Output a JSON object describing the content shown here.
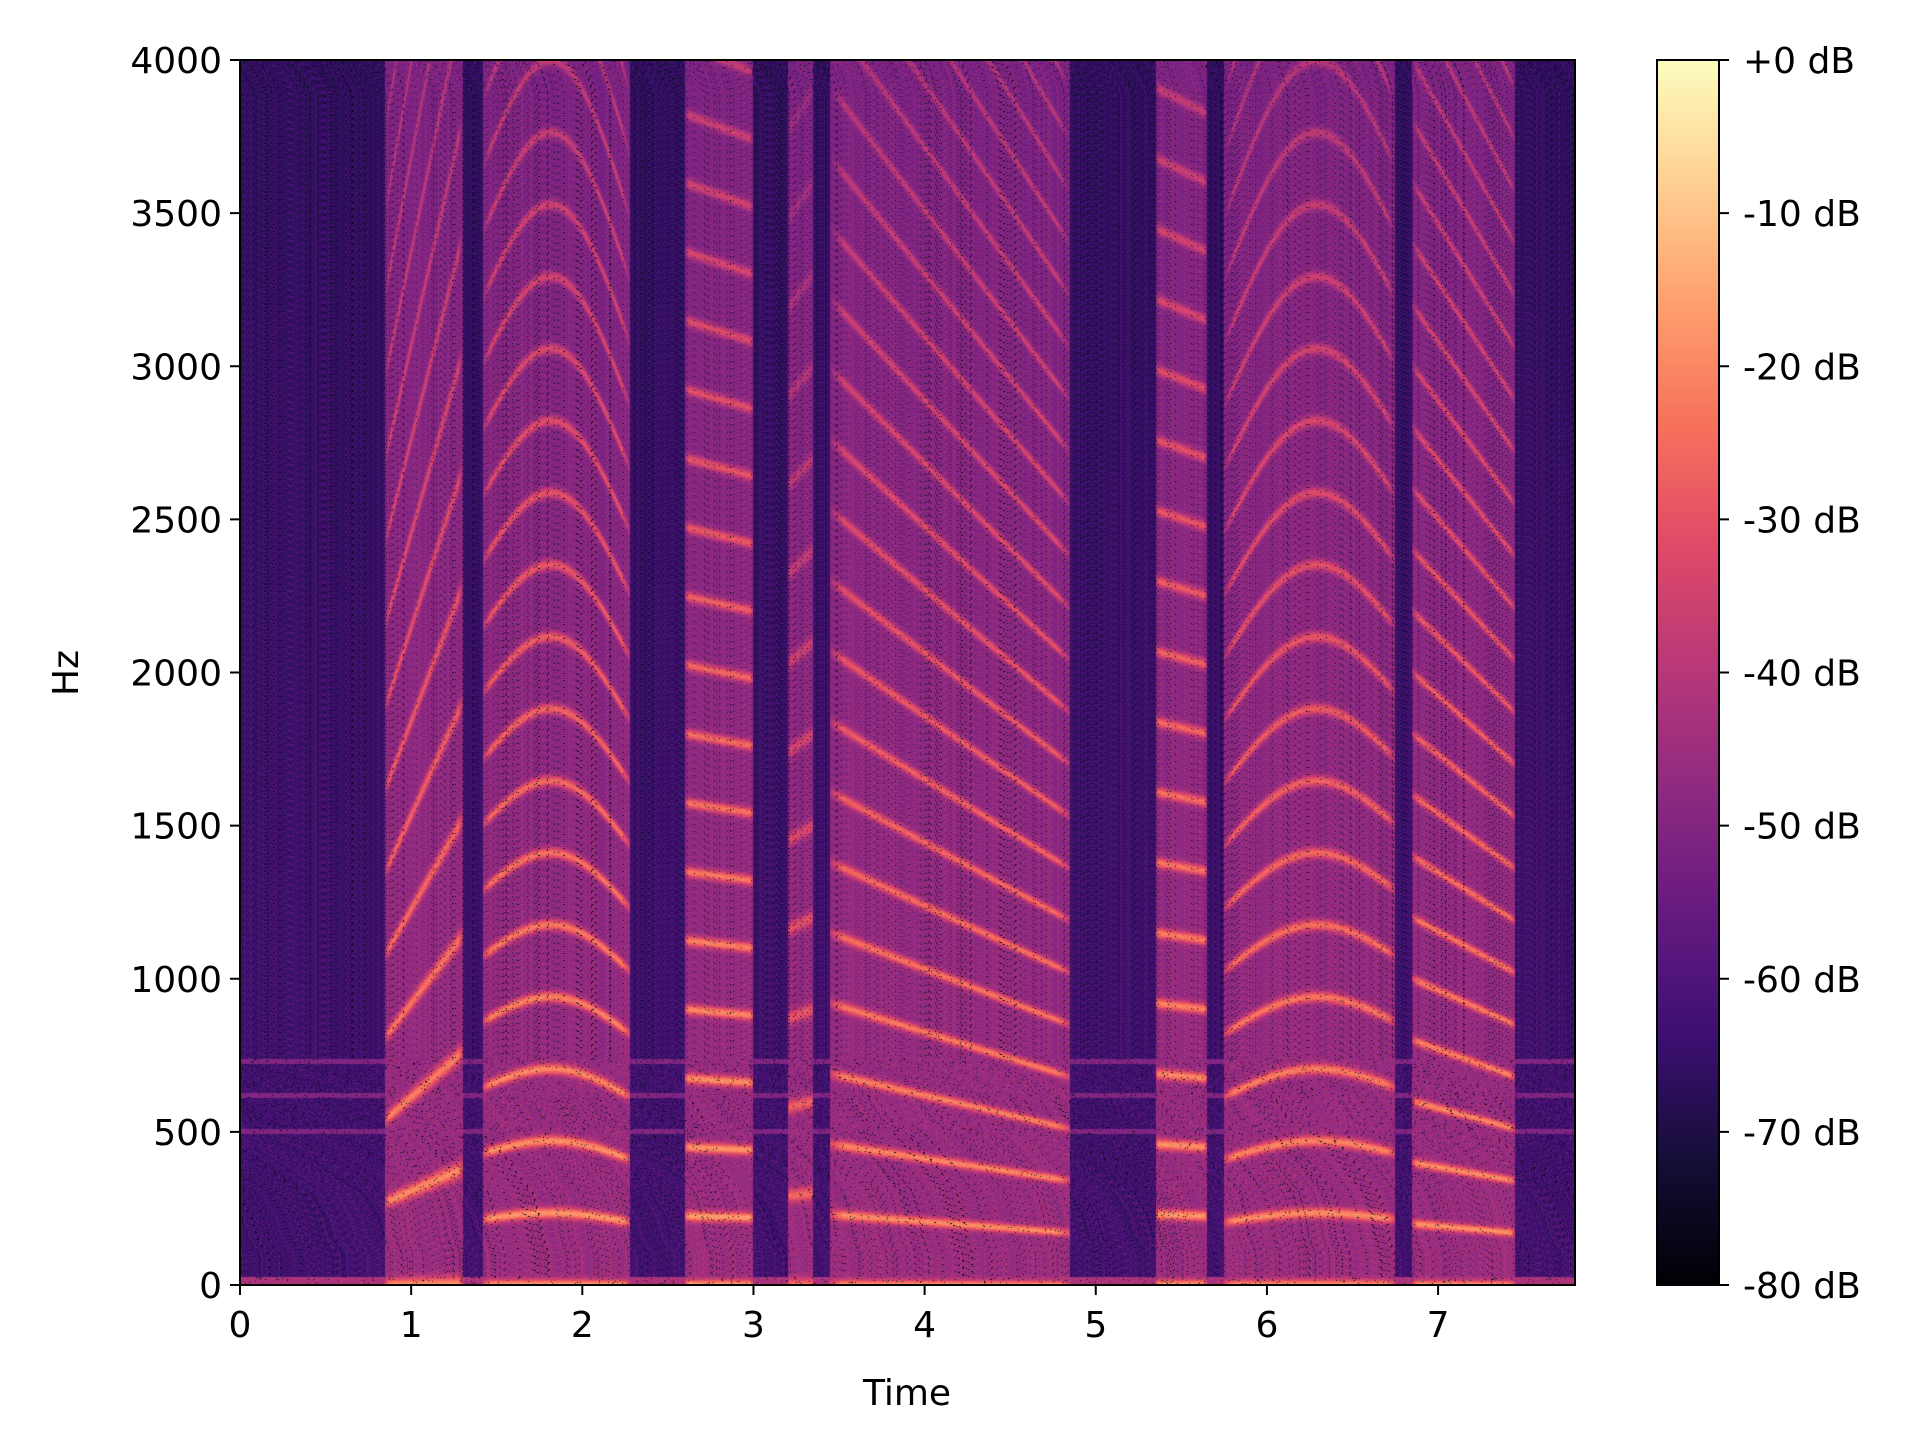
{
  "chart_data": {
    "type": "heatmap",
    "title": "",
    "xlabel": "Time",
    "ylabel": "Hz",
    "xlim": [
      0,
      7.8
    ],
    "ylim": [
      0,
      4000
    ],
    "x_ticks": [
      0,
      1,
      2,
      3,
      4,
      5,
      6,
      7
    ],
    "x_tick_labels": [
      "0",
      "1",
      "2",
      "3",
      "4",
      "5",
      "6",
      "7"
    ],
    "y_ticks": [
      0,
      500,
      1000,
      1500,
      2000,
      2500,
      3000,
      3500,
      4000
    ],
    "y_tick_labels": [
      "0",
      "500",
      "1000",
      "1500",
      "2000",
      "2500",
      "3000",
      "3500",
      "4000"
    ],
    "colormap": "magma",
    "colorbar": {
      "range_db": [
        -80,
        0
      ],
      "ticks": [
        0,
        -10,
        -20,
        -30,
        -40,
        -50,
        -60,
        -70,
        -80
      ],
      "tick_labels": [
        "+0 dB",
        "-10 dB",
        "-20 dB",
        "-30 dB",
        "-40 dB",
        "-50 dB",
        "-60 dB",
        "-70 dB",
        "-80 dB"
      ]
    },
    "voiced_segments": [
      {
        "start": 0.85,
        "end": 1.3,
        "f0": 270,
        "f0_end": 360,
        "shape": "rise",
        "level_db": -18
      },
      {
        "start": 1.42,
        "end": 2.28,
        "f0": 215,
        "f0_end": 205,
        "shape": "arch",
        "level_db": -16
      },
      {
        "start": 2.6,
        "end": 3.0,
        "f0": 225,
        "f0_end": 220,
        "shape": "flat",
        "level_db": -15
      },
      {
        "start": 3.2,
        "end": 3.35,
        "f0": 290,
        "f0_end": 300,
        "shape": "flat",
        "level_db": -24
      },
      {
        "start": 3.45,
        "end": 4.85,
        "f0": 230,
        "f0_end": 170,
        "shape": "fall",
        "level_db": -18
      },
      {
        "start": 5.35,
        "end": 5.65,
        "f0": 230,
        "f0_end": 225,
        "shape": "flat",
        "level_db": -16
      },
      {
        "start": 5.75,
        "end": 6.75,
        "f0": 205,
        "f0_end": 215,
        "shape": "arch",
        "level_db": -18
      },
      {
        "start": 6.85,
        "end": 7.45,
        "f0": 200,
        "f0_end": 170,
        "shape": "fall",
        "level_db": -17
      }
    ],
    "background_db": -62,
    "noise_lines_hz": [
      500,
      620,
      730
    ]
  }
}
